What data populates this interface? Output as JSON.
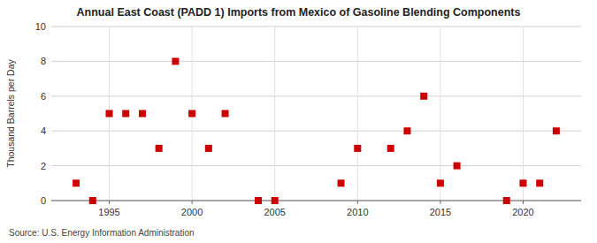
{
  "chart_data": {
    "type": "scatter",
    "title": "Annual East Coast (PADD 1) Imports from Mexico of Gasoline Blending Components",
    "ylabel": "Thousand Barrels per Day",
    "source": "Source: U.S. Energy Information Administration",
    "x": [
      1993,
      1994,
      1995,
      1996,
      1997,
      1998,
      1999,
      2000,
      2001,
      2002,
      2004,
      2005,
      2009,
      2010,
      2012,
      2013,
      2014,
      2015,
      2016,
      2019,
      2020,
      2021,
      2022
    ],
    "values": [
      1,
      0,
      5,
      5,
      5,
      3,
      8,
      5,
      3,
      5,
      0,
      0,
      1,
      3,
      3,
      4,
      6,
      1,
      2,
      0,
      1,
      1,
      4
    ],
    "color": "#cc0000",
    "marker": "square",
    "xlim": [
      1991.5,
      2023.5
    ],
    "ylim": [
      0,
      10
    ],
    "xticks": [
      1995,
      2000,
      2005,
      2010,
      2015,
      2020
    ],
    "yticks": [
      0,
      2,
      4,
      6,
      8,
      10
    ],
    "grid": true
  }
}
